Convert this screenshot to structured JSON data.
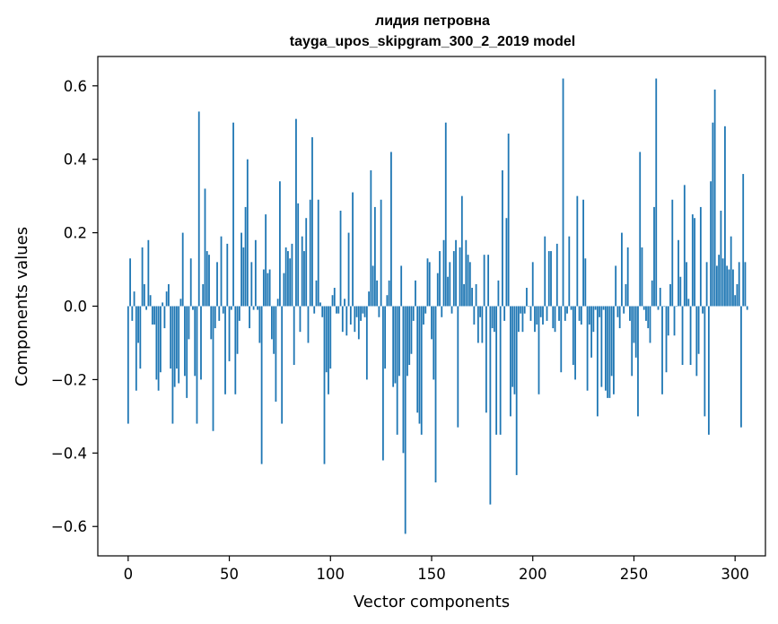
{
  "chart_data": {
    "type": "bar",
    "title": "лидия петровна",
    "subtitle": "tayga_upos_skipgram_300_2_2019 model",
    "xlabel": "Vector components",
    "ylabel": "Components values",
    "xlim": [
      -15,
      315
    ],
    "ylim": [
      -0.68,
      0.68
    ],
    "xticks": [
      0,
      50,
      100,
      150,
      200,
      250,
      300
    ],
    "xtick_labels": [
      "0",
      "50",
      "100",
      "150",
      "200",
      "250",
      "300"
    ],
    "yticks": [
      -0.6,
      -0.4,
      -0.2,
      0.0,
      0.2,
      0.4,
      0.6
    ],
    "ytick_labels": [
      "−0.6",
      "−0.4",
      "−0.2",
      "0.0",
      "0.2",
      "0.4",
      "0.6"
    ],
    "bar_color": "#1f77b4",
    "grid": false,
    "values": [
      -0.32,
      0.13,
      -0.04,
      0.04,
      -0.23,
      -0.1,
      -0.17,
      0.16,
      0.06,
      -0.01,
      0.18,
      0.03,
      -0.05,
      -0.05,
      -0.2,
      -0.23,
      -0.18,
      0.01,
      -0.06,
      0.04,
      0.06,
      -0.17,
      -0.32,
      -0.22,
      -0.17,
      -0.21,
      0.02,
      0.2,
      -0.19,
      -0.25,
      -0.09,
      0.13,
      -0.01,
      -0.19,
      -0.32,
      0.53,
      -0.2,
      0.06,
      0.32,
      0.15,
      0.14,
      -0.09,
      -0.34,
      -0.06,
      0.12,
      -0.04,
      0.19,
      -0.02,
      -0.24,
      0.17,
      -0.15,
      -0.01,
      0.5,
      -0.24,
      -0.13,
      -0.04,
      0.2,
      0.16,
      0.27,
      0.4,
      -0.06,
      0.12,
      -0.01,
      0.18,
      -0.01,
      -0.1,
      -0.43,
      0.1,
      0.25,
      0.09,
      0.1,
      -0.09,
      -0.13,
      -0.26,
      0.02,
      0.34,
      -0.32,
      0.09,
      0.16,
      0.15,
      0.13,
      0.17,
      -0.16,
      0.51,
      0.28,
      -0.07,
      0.19,
      0.15,
      0.24,
      -0.1,
      0.29,
      0.46,
      -0.02,
      0.07,
      0.29,
      0.01,
      -0.03,
      -0.43,
      -0.18,
      -0.24,
      -0.17,
      0.03,
      0.05,
      -0.02,
      -0.02,
      0.26,
      -0.07,
      0.02,
      -0.08,
      0.2,
      -0.05,
      0.31,
      -0.07,
      -0.03,
      -0.09,
      -0.04,
      -0.02,
      -0.03,
      -0.2,
      0.04,
      0.37,
      0.11,
      0.27,
      0.07,
      -0.03,
      0.29,
      -0.42,
      -0.17,
      0.03,
      0.07,
      0.42,
      -0.22,
      -0.21,
      -0.35,
      -0.19,
      0.11,
      -0.4,
      -0.62,
      -0.19,
      -0.16,
      -0.13,
      -0.04,
      0.07,
      -0.29,
      -0.32,
      -0.35,
      -0.05,
      -0.02,
      0.13,
      0.12,
      -0.09,
      -0.2,
      -0.48,
      0.09,
      0.15,
      -0.03,
      0.18,
      0.5,
      0.08,
      0.12,
      -0.02,
      0.15,
      0.18,
      -0.33,
      0.16,
      0.3,
      0.06,
      0.18,
      0.14,
      0.12,
      0.05,
      -0.05,
      0.06,
      -0.1,
      -0.03,
      -0.1,
      0.14,
      -0.29,
      0.14,
      -0.54,
      -0.06,
      -0.07,
      -0.35,
      0.07,
      -0.35,
      0.37,
      -0.04,
      0.24,
      0.47,
      -0.3,
      -0.22,
      -0.24,
      -0.46,
      -0.07,
      -0.02,
      -0.07,
      -0.02,
      0.05,
      0.0,
      -0.04,
      0.12,
      -0.07,
      -0.05,
      -0.24,
      -0.03,
      -0.05,
      0.19,
      -0.04,
      0.15,
      0.15,
      -0.06,
      -0.07,
      0.17,
      -0.04,
      -0.18,
      0.62,
      -0.04,
      -0.02,
      0.19,
      -0.01,
      -0.16,
      -0.2,
      0.3,
      -0.04,
      -0.05,
      0.29,
      0.13,
      -0.23,
      -0.05,
      -0.14,
      -0.07,
      -0.01,
      -0.3,
      -0.03,
      -0.22,
      -0.01,
      -0.23,
      -0.25,
      -0.25,
      -0.19,
      -0.24,
      0.11,
      -0.03,
      -0.06,
      0.2,
      -0.02,
      0.06,
      0.16,
      -0.04,
      -0.19,
      -0.1,
      -0.14,
      -0.3,
      0.42,
      0.16,
      -0.01,
      -0.04,
      -0.06,
      -0.1,
      0.07,
      0.27,
      0.62,
      -0.01,
      0.05,
      -0.24,
      0.0,
      -0.18,
      -0.08,
      0.06,
      0.29,
      -0.08,
      0.0,
      0.18,
      0.08,
      -0.16,
      0.33,
      0.12,
      0.02,
      -0.16,
      0.25,
      0.24,
      -0.19,
      -0.13,
      0.27,
      -0.02,
      -0.3,
      0.12,
      -0.35,
      0.34,
      0.5,
      0.59,
      0.11,
      0.14,
      0.26,
      0.13,
      0.49,
      0.11,
      0.1,
      0.19,
      0.1,
      0.03,
      0.06,
      0.12,
      -0.33,
      0.36,
      0.12,
      -0.01
    ]
  }
}
